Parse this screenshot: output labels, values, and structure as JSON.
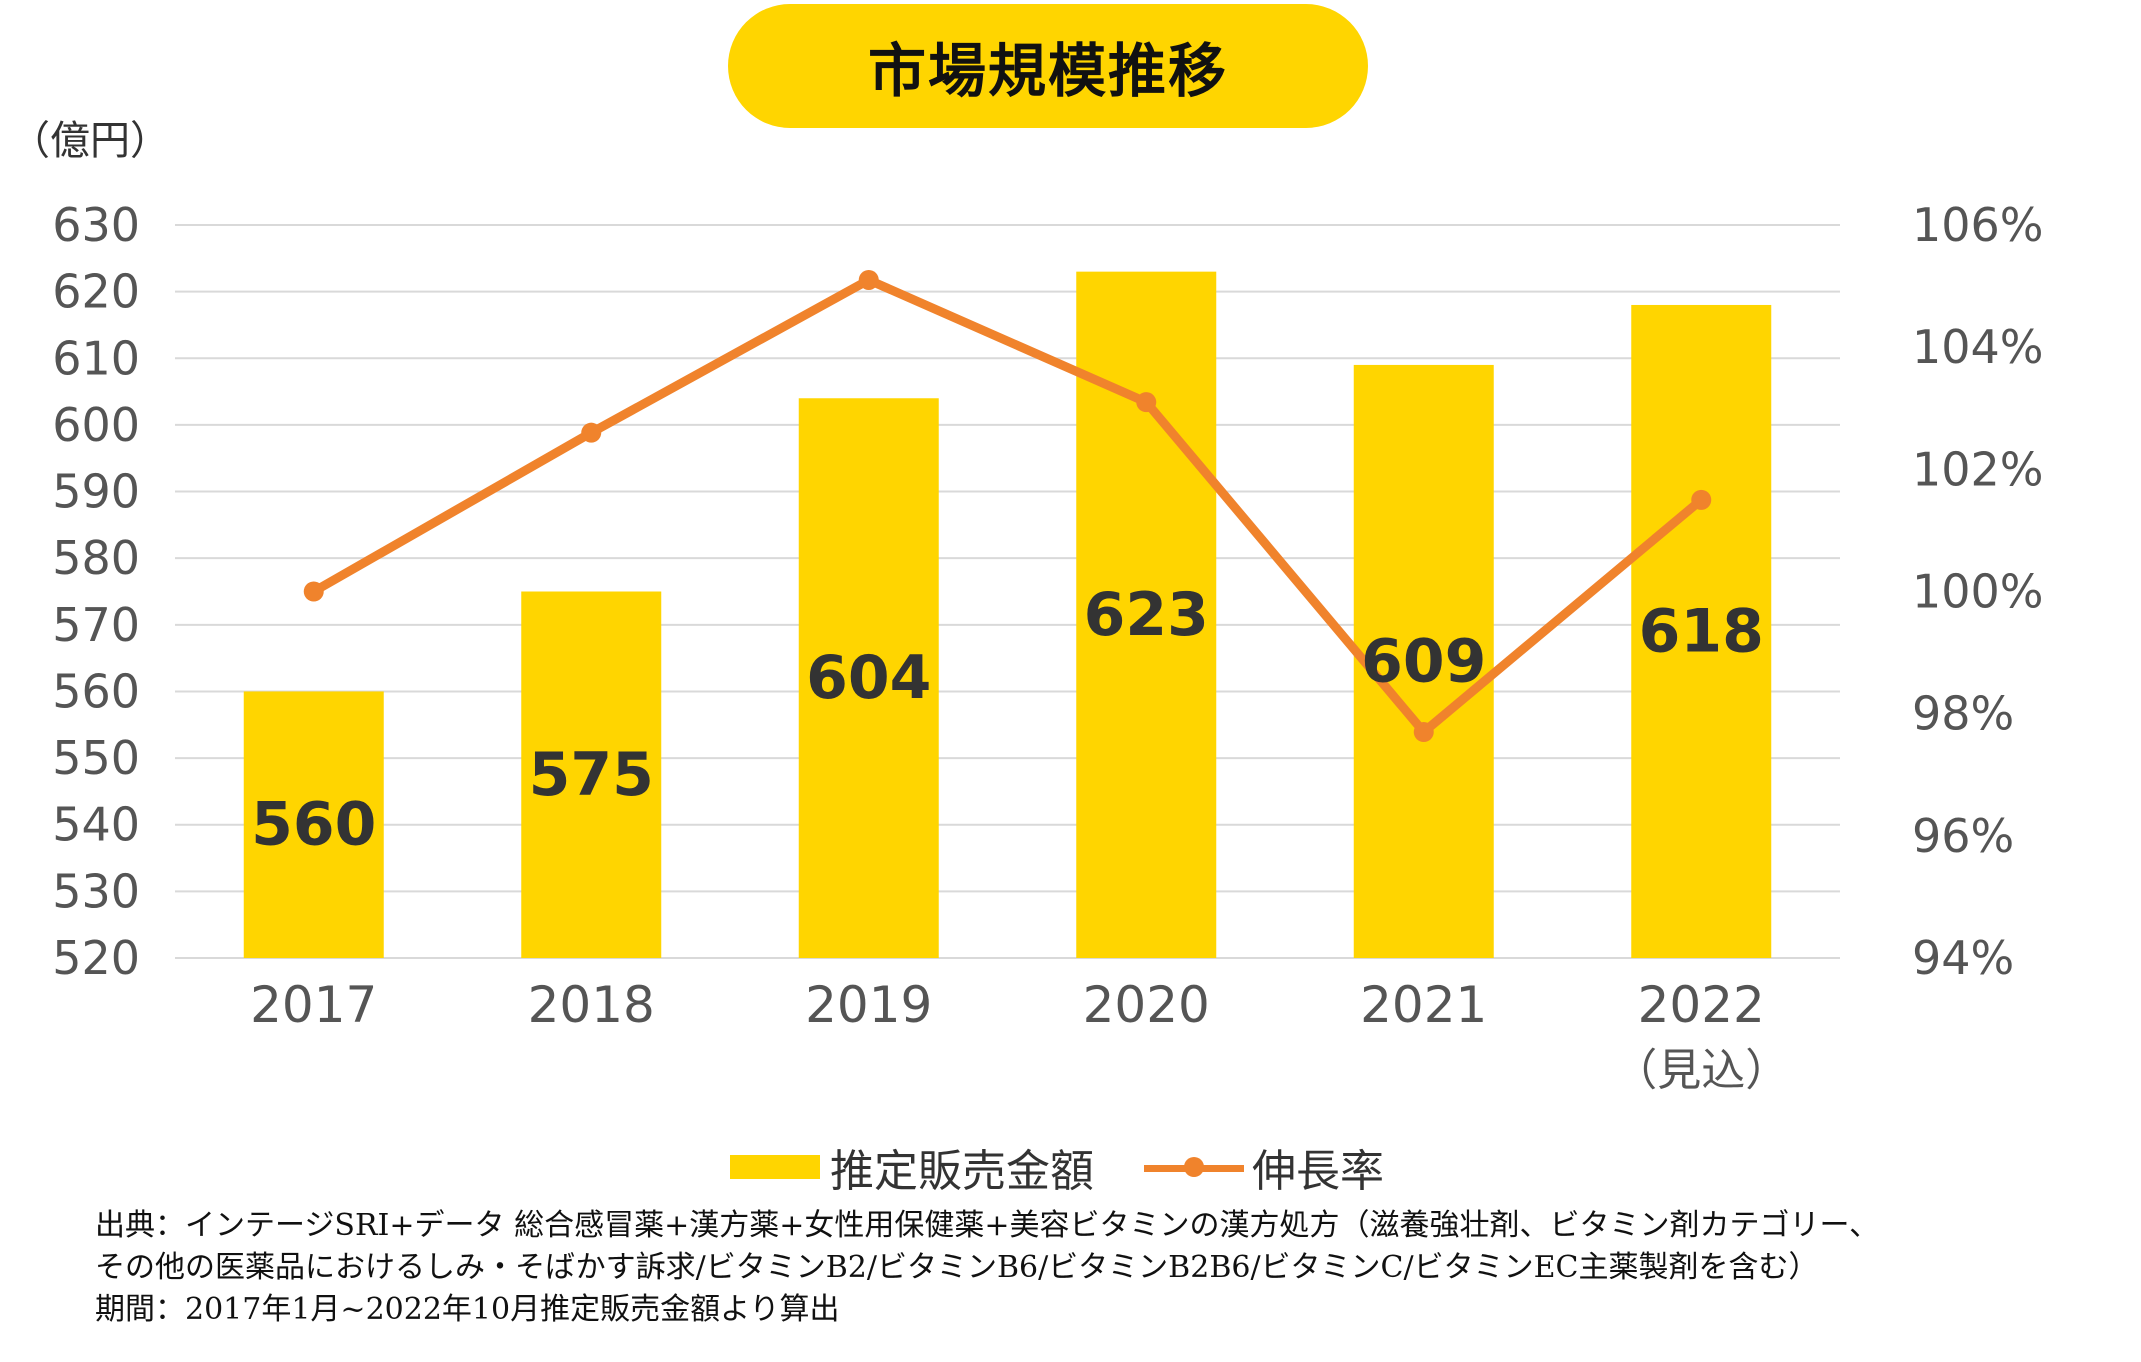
{
  "chart_data": {
    "type": "bar",
    "title": "市場規模推移",
    "ylabel": "（億円）",
    "categories": [
      "2017",
      "2018",
      "2019",
      "2020",
      "2021",
      "2022"
    ],
    "category_sublabels": [
      "",
      "",
      "",
      "",
      "",
      "（見込）"
    ],
    "ylim": [
      520,
      630
    ],
    "yticks": [
      "630",
      "620",
      "610",
      "600",
      "590",
      "580",
      "570",
      "560",
      "550",
      "540",
      "530",
      "520"
    ],
    "y2lim": [
      94,
      106
    ],
    "y2ticks": [
      "106%",
      "104%",
      "102%",
      "100%",
      "98%",
      "96%",
      "94%"
    ],
    "grid": true,
    "legend_position": "bottom",
    "series": [
      {
        "name": "推定販売金額",
        "type": "bar",
        "axis": "left",
        "color": "#FFD500",
        "values": [
          560,
          575,
          604,
          623,
          609,
          618
        ],
        "labels": [
          "560",
          "575",
          "604",
          "623",
          "609",
          "618"
        ]
      },
      {
        "name": "伸長率",
        "type": "line",
        "axis": "right",
        "color": "#F0832C",
        "values": [
          100.0,
          102.6,
          105.1,
          103.1,
          97.7,
          101.5
        ]
      }
    ]
  },
  "source": {
    "line1": "出典：インテージSRI+データ 総合感冒薬+漢方薬+女性用保健薬+美容ビタミンの漢方処方（滋養強壮剤、ビタミン剤カテゴリー、",
    "line2": "その他の医薬品におけるしみ・そばかす訴求/ビタミンB2/ビタミンB6/ビタミンB2B6/ビタミンC/ビタミンEC主薬製剤を含む）",
    "line3": "期間：2017年1月~2022年10月推定販売金額より算出"
  }
}
